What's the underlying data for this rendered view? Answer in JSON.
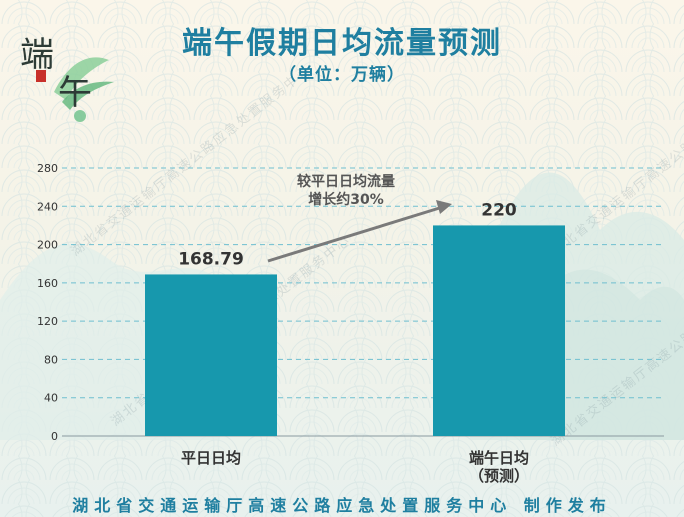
{
  "header": {
    "title": "端午假期日均流量预测",
    "subtitle": "（单位：万辆）"
  },
  "logo": {
    "text": "端午",
    "icon": "dragon-boat-festival-logo"
  },
  "footer": {
    "publisher": "湖北省交通运输厅高速公路应急处置服务中心  制作发布"
  },
  "watermark": "湖北省交通运输厅高速公路应急处置服务中心",
  "annotation": {
    "line1": "较平日日均流量",
    "line2": "增长约30%"
  },
  "colors": {
    "bar": "#1798ad",
    "accent": "#1f7fa0",
    "arrow": "#7a7a7a",
    "grid": "#6fbfd0"
  },
  "chart_data": {
    "type": "bar",
    "categories": [
      [
        "平日日均"
      ],
      [
        "端午日均",
        "（预测）"
      ]
    ],
    "values": [
      168.79,
      220
    ],
    "value_labels": [
      "168.79",
      "220"
    ],
    "ylim": [
      0,
      280
    ],
    "yticks": [
      0,
      40,
      80,
      120,
      160,
      200,
      240,
      280
    ],
    "grid": true
  }
}
